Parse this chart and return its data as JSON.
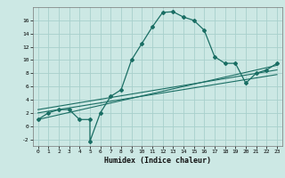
{
  "xlabel": "Humidex (Indice chaleur)",
  "bg_color": "#cce8e4",
  "grid_color": "#a8d0cc",
  "line_color": "#1a6e64",
  "xlim": [
    -0.5,
    23.5
  ],
  "ylim": [
    -3,
    18
  ],
  "yticks": [
    -2,
    0,
    2,
    4,
    6,
    8,
    10,
    12,
    14,
    16
  ],
  "xticks": [
    0,
    1,
    2,
    3,
    4,
    5,
    6,
    7,
    8,
    9,
    10,
    11,
    12,
    13,
    14,
    15,
    16,
    17,
    18,
    19,
    20,
    21,
    22,
    23
  ],
  "main_curve_x": [
    0,
    1,
    2,
    3,
    4,
    5,
    5,
    6,
    7,
    8,
    9,
    10,
    11,
    12,
    13,
    14,
    15,
    16,
    17,
    18,
    19,
    20,
    21,
    22,
    23
  ],
  "main_curve_y": [
    1,
    2,
    2.5,
    2.5,
    1,
    1,
    -2.3,
    2,
    4.5,
    5.5,
    10,
    12.5,
    15,
    17.2,
    17.3,
    16.5,
    16,
    14.5,
    10.5,
    9.5,
    9.5,
    6.5,
    8,
    8.5,
    9.5
  ],
  "line1_x": [
    0,
    23
  ],
  "line1_y": [
    1.0,
    9.2
  ],
  "line2_x": [
    0,
    23
  ],
  "line2_y": [
    2.0,
    7.8
  ],
  "line3_x": [
    0,
    23
  ],
  "line3_y": [
    2.5,
    8.5
  ]
}
